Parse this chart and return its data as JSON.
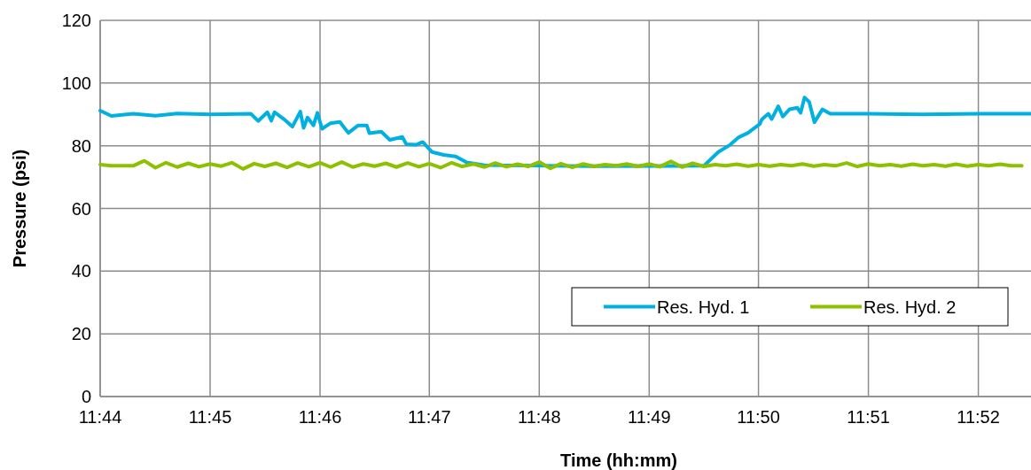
{
  "chart_data": {
    "type": "line",
    "xlabel": "Time (hh:mm)",
    "ylabel": "Pressure (psi)",
    "xlim": [
      11.7333,
      11.8747
    ],
    "xticks": [
      {
        "value": 11.7333,
        "label": "11:44"
      },
      {
        "value": 11.75,
        "label": "11:45"
      },
      {
        "value": 11.7667,
        "label": "11:46"
      },
      {
        "value": 11.7833,
        "label": "11:47"
      },
      {
        "value": 11.8,
        "label": "11:48"
      },
      {
        "value": 11.8167,
        "label": "11:49"
      },
      {
        "value": 11.8333,
        "label": "11:50"
      },
      {
        "value": 11.85,
        "label": "11:51"
      },
      {
        "value": 11.8667,
        "label": "11:52"
      }
    ],
    "ylim": [
      0,
      120
    ],
    "yticks": [
      0,
      20,
      40,
      60,
      80,
      100,
      120
    ],
    "grid": true,
    "legend": "bottom right",
    "marker": "none",
    "line_style": "solid",
    "series": [
      {
        "name": "Res. Hyd. 1",
        "color": "#00b0e0",
        "x": [
          11.7333,
          11.735,
          11.7383,
          11.7417,
          11.745,
          11.75,
          11.7562,
          11.7573,
          11.7587,
          11.7593,
          11.7598,
          11.7612,
          11.7625,
          11.7637,
          11.7642,
          11.7648,
          11.7657,
          11.7663,
          11.767,
          11.7683,
          11.7697,
          11.771,
          11.7725,
          11.7738,
          11.7742,
          11.776,
          11.7773,
          11.7792,
          11.7798,
          11.7813,
          11.7823,
          11.7837,
          11.7855,
          11.7873,
          11.789,
          11.7917,
          11.8083,
          11.825,
          11.8272,
          11.829,
          11.8303,
          11.8317,
          11.8335,
          11.8338,
          11.8348,
          11.8353,
          11.8363,
          11.837,
          11.838,
          11.8392,
          11.8397,
          11.8403,
          11.841,
          11.8418,
          11.843,
          11.8442,
          11.85,
          11.8583,
          11.8667,
          11.8747
        ],
        "values": [
          91.2,
          89.5,
          90.2,
          89.6,
          90.3,
          90.0,
          90.2,
          87.9,
          90.7,
          88,
          90.7,
          88.5,
          86.1,
          90.9,
          85.7,
          89,
          86.5,
          90.5,
          85.4,
          87.2,
          87.6,
          84.1,
          86.5,
          86.5,
          84,
          84.5,
          81.9,
          82.8,
          80.5,
          80.3,
          81.2,
          78,
          77.1,
          76.6,
          74.7,
          73.8,
          73.5,
          73.6,
          78,
          80.3,
          82.7,
          84.1,
          86.9,
          88.4,
          90.2,
          88.5,
          92.6,
          89.3,
          91.6,
          92.1,
          90.5,
          95.4,
          94,
          87.5,
          91.6,
          90.2,
          90.2,
          90,
          90.2,
          90.2
        ]
      },
      {
        "name": "Res. Hyd. 2",
        "color": "#8cc000",
        "x": [
          11.7333,
          11.735,
          11.7367,
          11.7383,
          11.74,
          11.7417,
          11.7433,
          11.745,
          11.7467,
          11.7483,
          11.75,
          11.7517,
          11.7533,
          11.755,
          11.7567,
          11.7583,
          11.76,
          11.7617,
          11.7633,
          11.765,
          11.7667,
          11.7683,
          11.77,
          11.7717,
          11.7733,
          11.775,
          11.7767,
          11.7783,
          11.78,
          11.7817,
          11.7833,
          11.785,
          11.7867,
          11.7883,
          11.79,
          11.7917,
          11.7933,
          11.795,
          11.7967,
          11.7983,
          11.8,
          11.8017,
          11.8033,
          11.805,
          11.8067,
          11.8083,
          11.81,
          11.8117,
          11.8133,
          11.815,
          11.8167,
          11.8183,
          11.82,
          11.8217,
          11.8233,
          11.825,
          11.8267,
          11.8283,
          11.83,
          11.8317,
          11.8333,
          11.835,
          11.8367,
          11.8383,
          11.84,
          11.8417,
          11.8433,
          11.845,
          11.8467,
          11.8483,
          11.85,
          11.8517,
          11.8533,
          11.855,
          11.8567,
          11.8583,
          11.86,
          11.8617,
          11.8633,
          11.865,
          11.8667,
          11.8683,
          11.87,
          11.8717,
          11.8733
        ],
        "values": [
          74.0,
          73.6,
          73.6,
          73.6,
          75.2,
          73.0,
          74.6,
          73.2,
          74.4,
          73.3,
          74.2,
          73.5,
          74.6,
          72.6,
          74.3,
          73.4,
          74.4,
          73.1,
          74.5,
          73.3,
          74.6,
          73.2,
          74.8,
          73.2,
          74.2,
          73.5,
          74.4,
          73.2,
          74.5,
          73.3,
          74.3,
          73.0,
          74.6,
          73.4,
          74.2,
          73.2,
          74.5,
          73.3,
          74.1,
          73.4,
          74.8,
          72.8,
          74.3,
          73.1,
          74.2,
          73.4,
          74.0,
          73.6,
          74.2,
          73.4,
          74.2,
          73.3,
          75.0,
          73.2,
          74.4,
          73.4,
          74.0,
          73.6,
          74.1,
          73.5,
          74.0,
          73.5,
          74.0,
          73.6,
          74.2,
          73.5,
          74.0,
          73.6,
          74.5,
          73.4,
          74.2,
          73.6,
          74.0,
          73.5,
          74.1,
          73.6,
          74.0,
          73.5,
          74.1,
          73.5,
          74.0,
          73.6,
          74.1,
          73.6,
          73.6
        ]
      }
    ]
  }
}
